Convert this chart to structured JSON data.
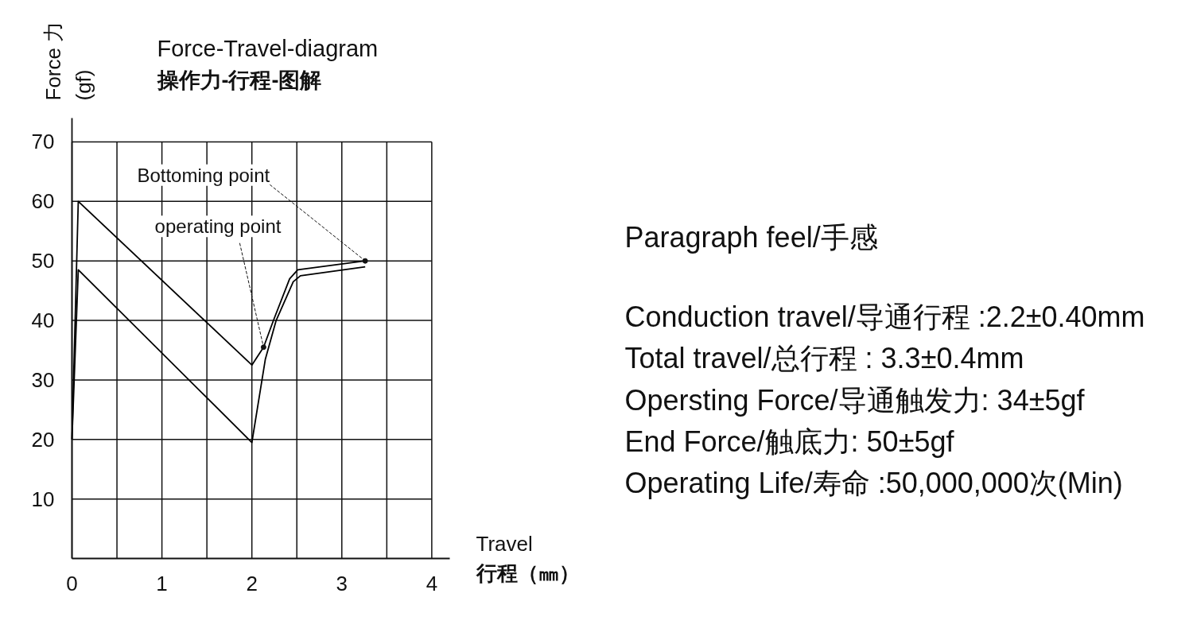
{
  "chart_data": [
    {
      "type": "line",
      "title": "Force-Travel-diagram",
      "subtitle": "操作力-行程-图解",
      "xlabel": "Travel\n行程（㎜）",
      "ylabel": "Force 力\n(gf)",
      "xlim": [
        0,
        4.2
      ],
      "ylim": [
        0,
        74
      ],
      "xticks": [
        0,
        {
          "value": 0.5,
          "label": null
        },
        1,
        {
          "value": 1.5,
          "label": null
        },
        2,
        {
          "value": 2.5,
          "label": null
        },
        3,
        {
          "value": 3.5,
          "label": null
        },
        4
      ],
      "yticks": [
        10,
        20,
        30,
        40,
        50,
        60,
        70
      ],
      "grid": true,
      "series": [
        {
          "color": "#000000",
          "x": [
            0,
            0.07,
            2,
            2.13,
            2.24,
            2.42,
            2.51,
            3.26
          ],
          "values": [
            20,
            60,
            32.5,
            35.5,
            40,
            47,
            48.5,
            50
          ]
        },
        {
          "color": "#000000",
          "x": [
            0,
            0.07,
            2,
            2.15,
            2.27,
            2.46,
            2.54,
            3.26
          ],
          "values": [
            20,
            48.5,
            19.5,
            33.5,
            40,
            46.5,
            47.5,
            49
          ]
        }
      ],
      "annotations": [
        {
          "text": "Bottoming point",
          "x": 3.26,
          "y": 50
        },
        {
          "text": "operating point",
          "x": 2.13,
          "y": 35.5
        }
      ]
    },
    {
      "type": "other",
      "title": "Paragraph feel/手感",
      "annotations": [
        "Conduction travel/导通行程 :2.2±0.40mm",
        "Total travel/总行程 : 3.3±0.4mm",
        "Opersting Force/导通触发力: 34±5gf",
        "End Force/触底力: 50±5gf",
        "Operating Life/寿命 :50,000,000次(Min)"
      ]
    }
  ]
}
